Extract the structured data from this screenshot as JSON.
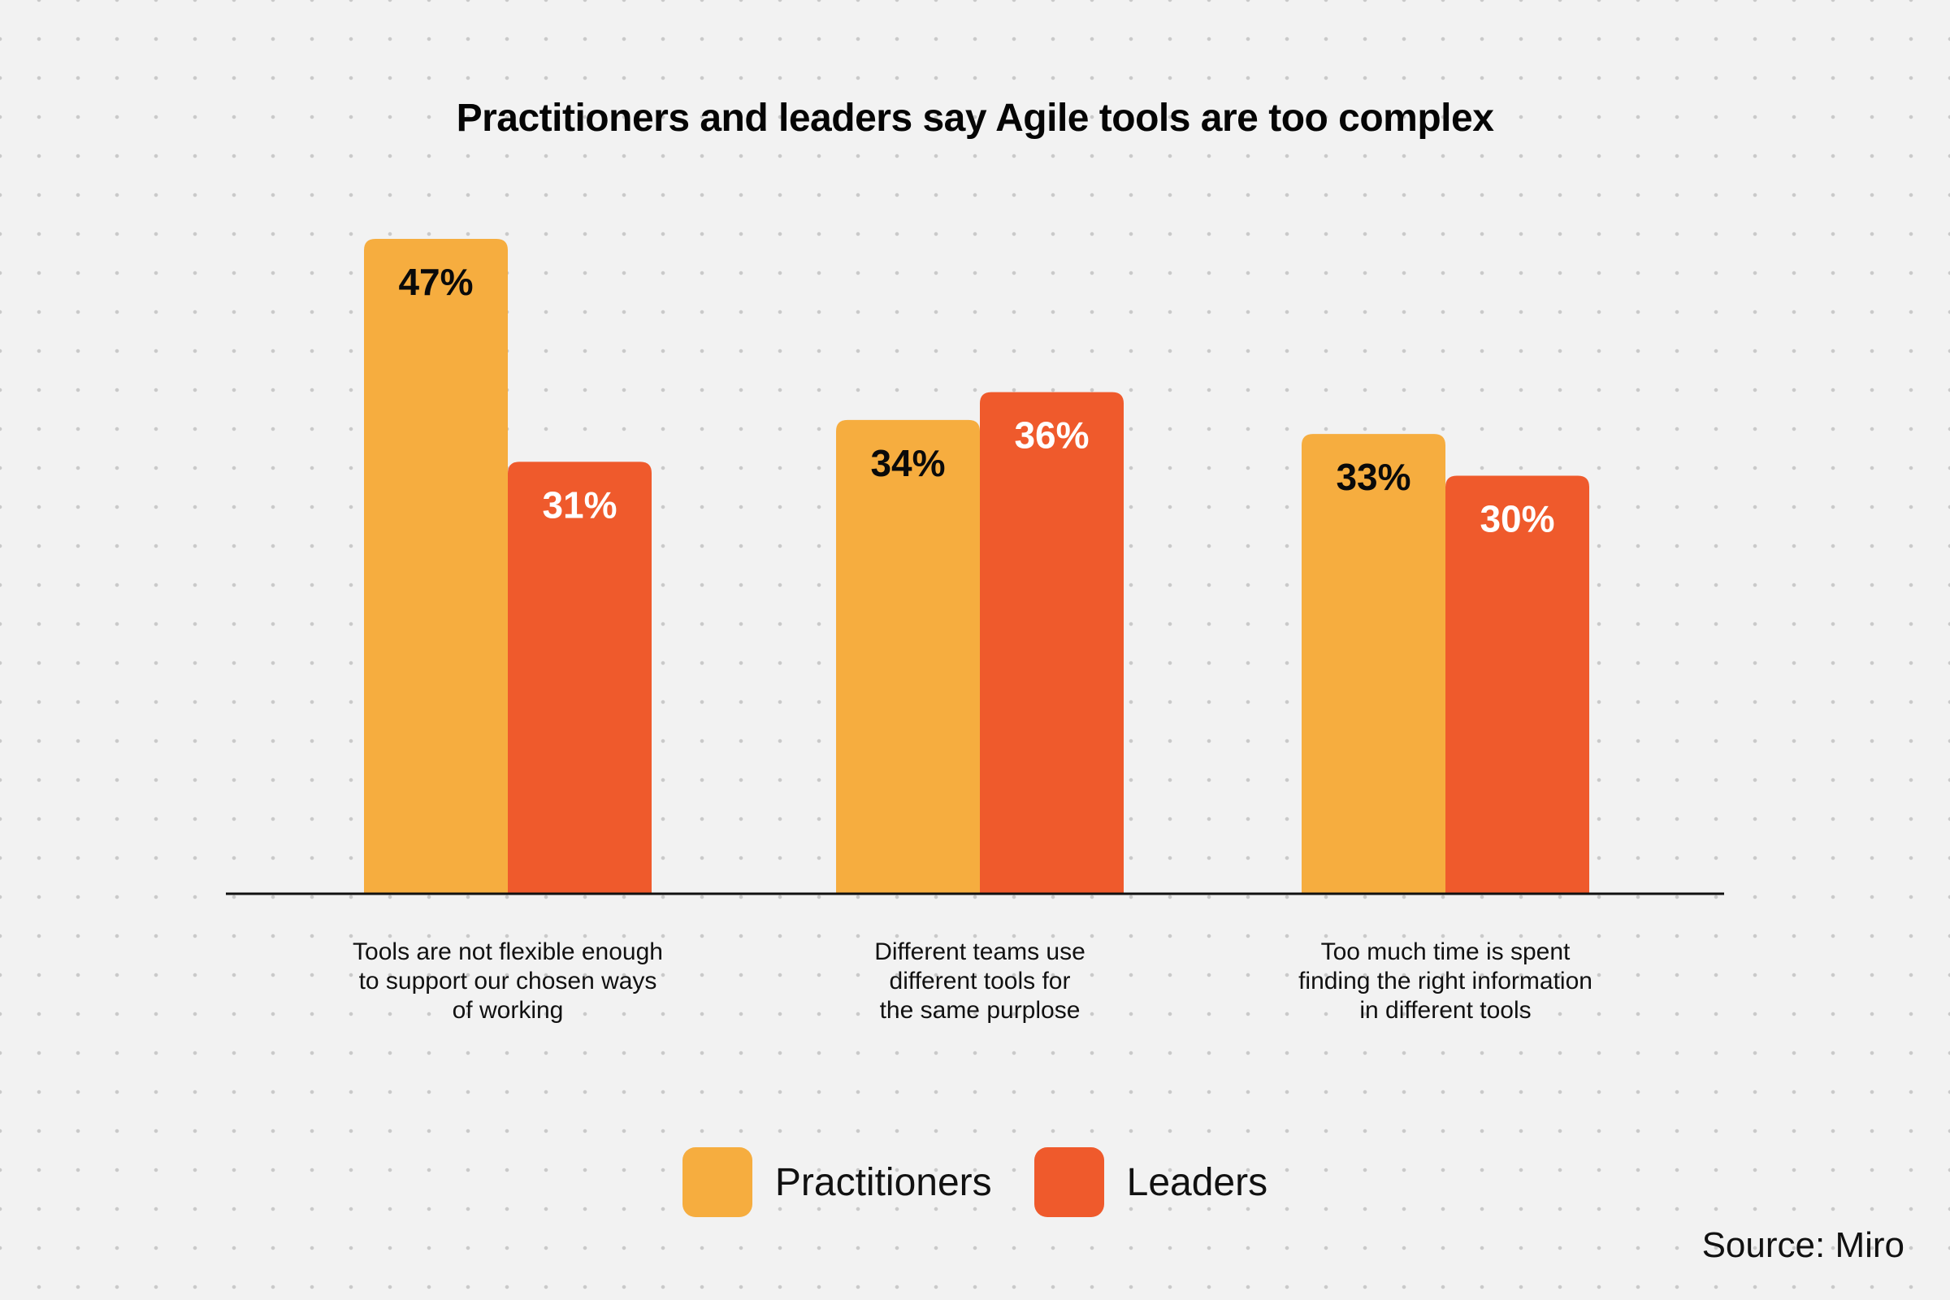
{
  "chart_data": {
    "type": "bar",
    "title": "Practitioners and leaders say Agile tools are too complex",
    "categories": [
      [
        "Tools are not flexible enough",
        "to support our chosen ways",
        "of working"
      ],
      [
        "Different teams use",
        "different tools for",
        "the same purplose"
      ],
      [
        "Too much time is spent",
        "finding the right information",
        "in different tools"
      ]
    ],
    "series": [
      {
        "name": "Practitioners",
        "color": "#f6ad3f",
        "label_color": "#0a0a0a",
        "values": [
          47,
          34,
          33
        ],
        "labels": [
          "47%",
          "34%",
          "33%"
        ]
      },
      {
        "name": "Leaders",
        "color": "#ef5a2c",
        "label_color": "#ffffff",
        "values": [
          31,
          36,
          30
        ],
        "labels": [
          "31%",
          "36%",
          "30%"
        ]
      }
    ],
    "ylim": [
      0,
      50
    ],
    "grid": false,
    "legend_position": "bottom-center",
    "xlabel": "",
    "ylabel": ""
  },
  "source": "Source: Miro"
}
